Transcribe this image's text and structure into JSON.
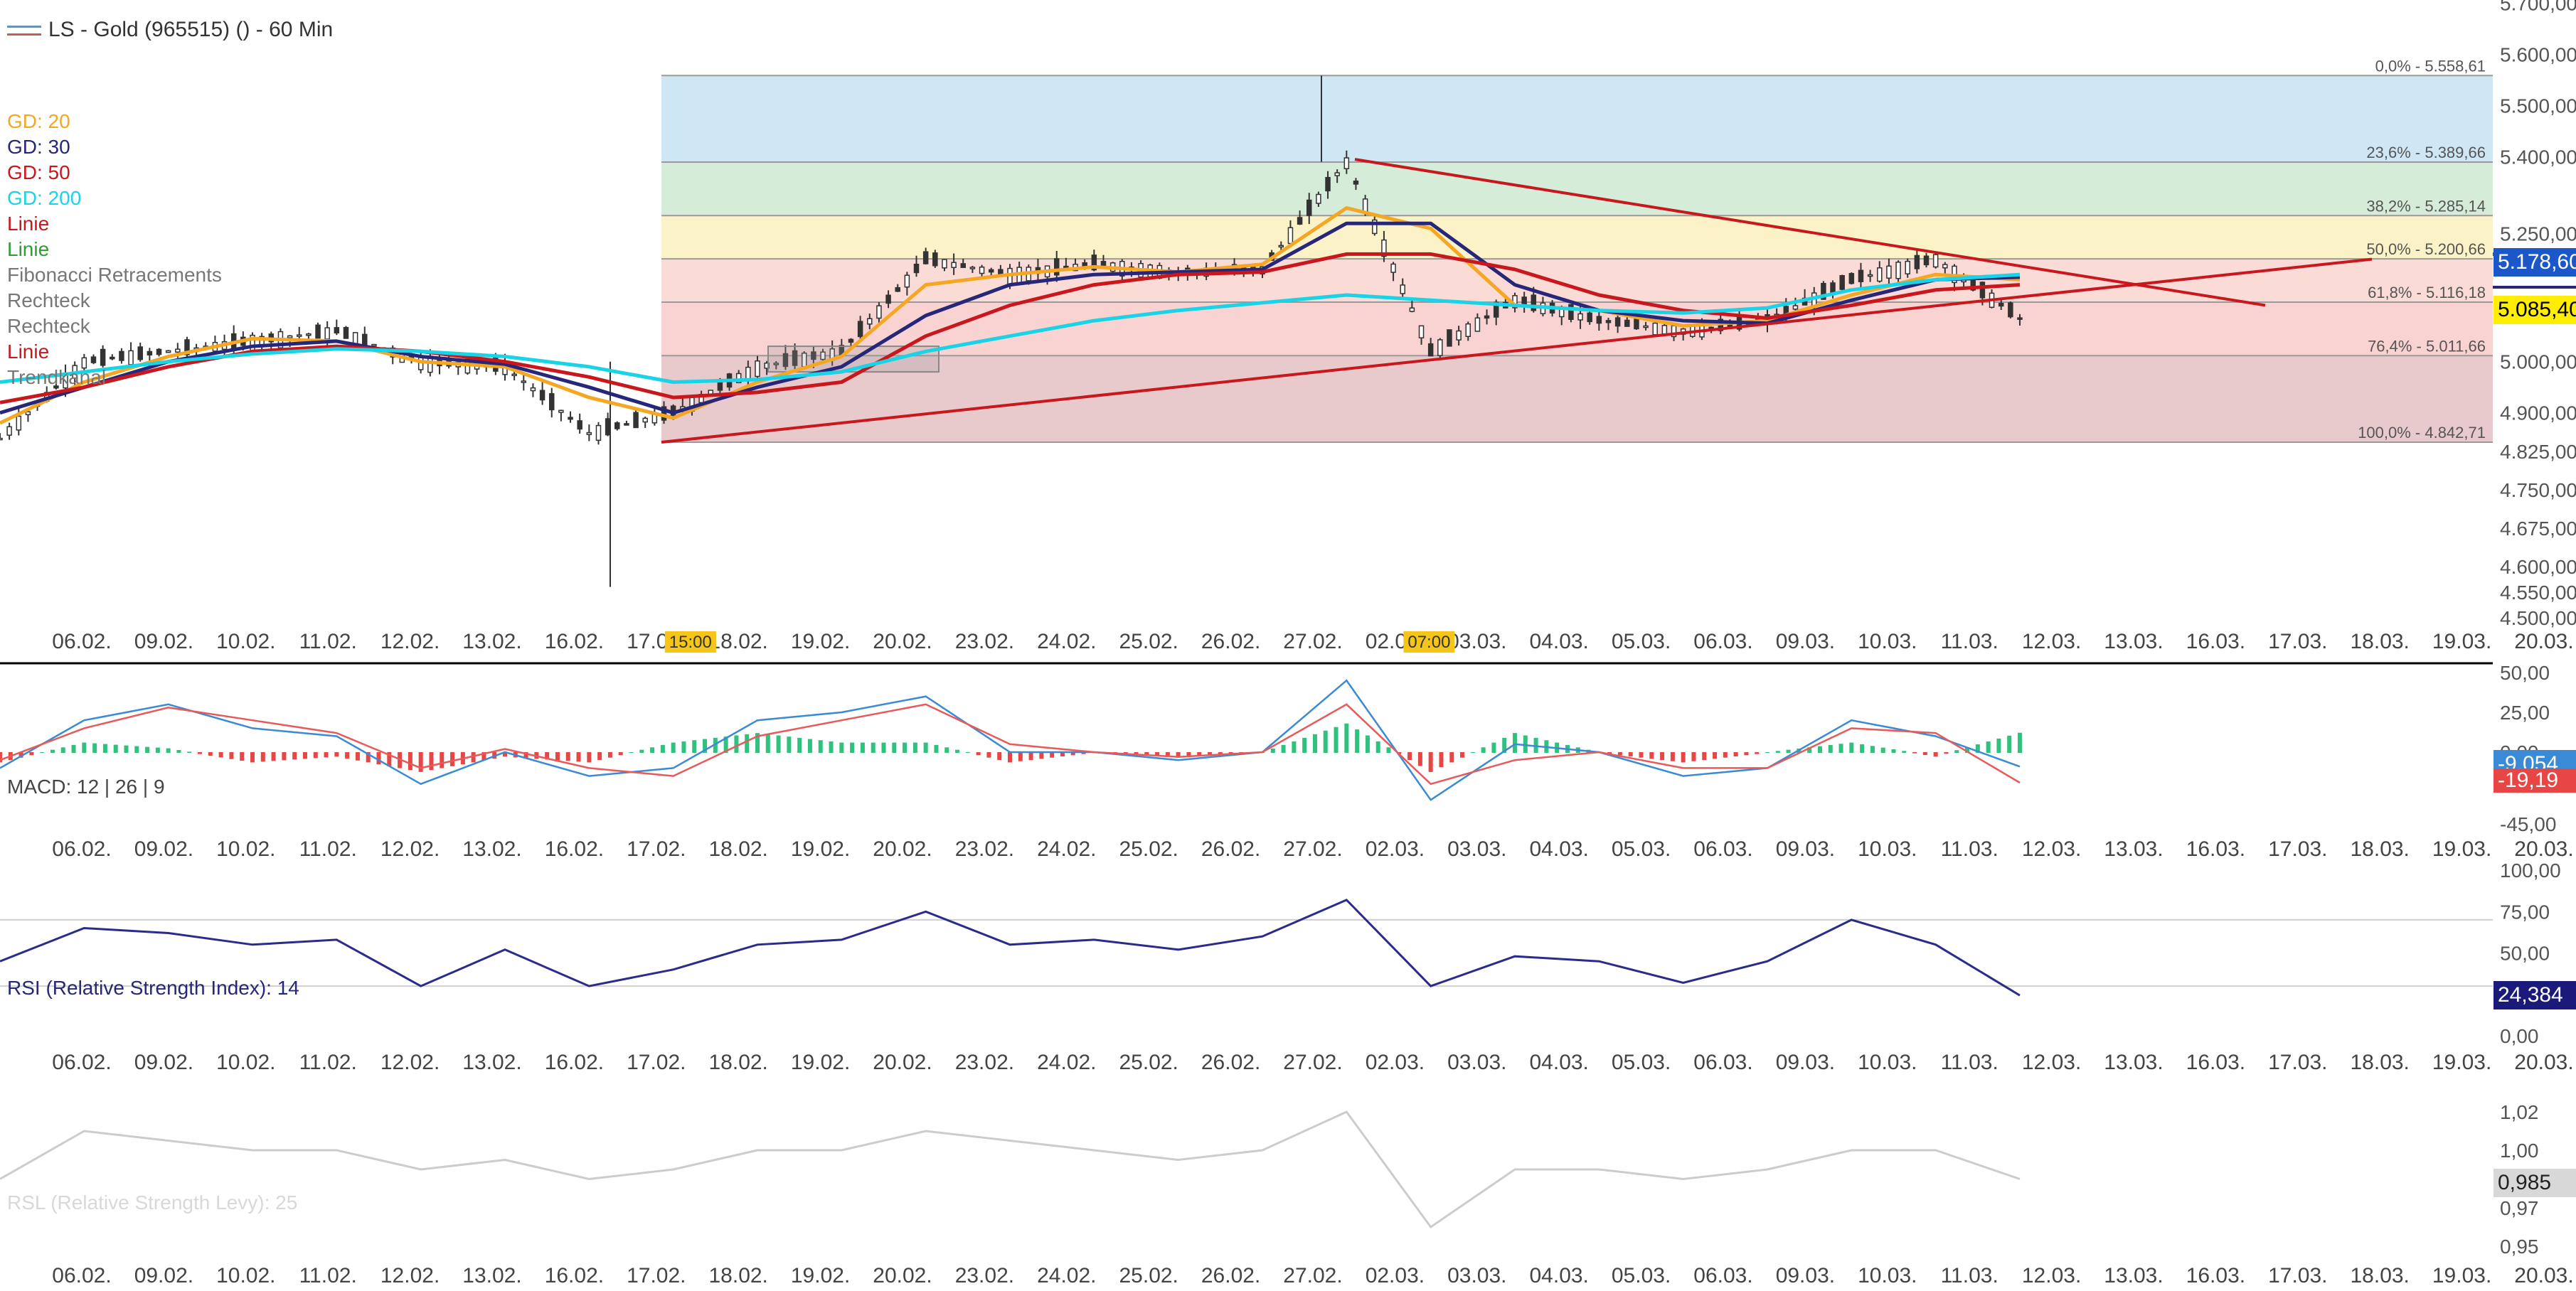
{
  "window": {
    "title": "LS - Gold (965515) () - 60 Min"
  },
  "legend": [
    {
      "label": "GD: 20",
      "color": "#f5a623"
    },
    {
      "label": "GD: 30",
      "color": "#27277a"
    },
    {
      "label": "GD: 50",
      "color": "#c8171d"
    },
    {
      "label": "GD: 200",
      "color": "#19d4e6"
    },
    {
      "label": "Linie",
      "color": "#c8171d"
    },
    {
      "label": "Linie",
      "color": "#2e9e2e"
    },
    {
      "label": "Fibonacci Retracements",
      "color": "#777777"
    },
    {
      "label": "Rechteck",
      "color": "#777777"
    },
    {
      "label": "Rechteck",
      "color": "#777777"
    },
    {
      "label": "Linie",
      "color": "#c8171d"
    },
    {
      "label": "Trendkanal",
      "color": "#777777"
    }
  ],
  "price_panel": {
    "y_ticks": [
      "5.700,00",
      "5.600,00",
      "5.500,00",
      "5.400,00",
      "5.250,00",
      "5.000,00",
      "4.900,00",
      "4.825,00",
      "4.750,00",
      "4.675,00",
      "4.600,00",
      "4.550,00",
      "4.500,00"
    ],
    "last_price_label": "5.178,60",
    "cursor_price_label": "5.085,40"
  },
  "fibonacci": [
    {
      "label": "0,0% - 5.558,61",
      "value": 5558.61
    },
    {
      "label": "23,6% - 5.389,66",
      "value": 5389.66
    },
    {
      "label": "38,2% - 5.285,14",
      "value": 5285.14
    },
    {
      "label": "50,0% - 5.200,66",
      "value": 5200.66
    },
    {
      "label": "61,8% - 5.116,18",
      "value": 5116.18
    },
    {
      "label": "76,4% - 5.011,66",
      "value": 5011.66
    },
    {
      "label": "100,0% - 4.842,71",
      "value": 4842.71
    }
  ],
  "x_dates": [
    "06.02.",
    "09.02.",
    "10.02.",
    "11.02.",
    "12.02.",
    "13.02.",
    "16.02.",
    "17.02.",
    "18.02.",
    "19.02.",
    "20.02.",
    "23.02.",
    "24.02.",
    "25.02.",
    "26.02.",
    "27.02.",
    "02.03.",
    "03.03.",
    "04.03.",
    "05.03.",
    "06.03.",
    "09.03.",
    "10.03.",
    "11.03.",
    "12.03.",
    "13.03.",
    "16.03.",
    "17.03.",
    "18.03.",
    "19.03.",
    "20.03."
  ],
  "time_markers": [
    {
      "label": "15:00",
      "date_index": 7
    },
    {
      "label": "07:00",
      "date_index": 16
    }
  ],
  "macd": {
    "label": "MACD: 12 | 26 | 9",
    "y_ticks": [
      "50,00",
      "25,00",
      "0,00",
      "-45,00"
    ],
    "value_label": "-9,054",
    "signal_label": "-19,19"
  },
  "rsi": {
    "label": "RSI (Relative Strength Index): 14",
    "y_ticks": [
      "100,00",
      "75,00",
      "50,00",
      "0,00"
    ],
    "value_label": "24,384"
  },
  "rsl": {
    "label": "RSL (Relative Strength Levy): 25",
    "y_ticks": [
      "1,02",
      "1,00",
      "0,97",
      "0,95"
    ],
    "value_label": "0,985"
  },
  "colors": {
    "up_candle": "#333333",
    "down_candle": "#333333",
    "gd20": "#f5a623",
    "gd30": "#27277a",
    "gd50": "#c8171d",
    "gd200": "#19d4e6",
    "macd_pos": "#2ec27e",
    "macd_neg": "#e84545",
    "macd_line": "#3a8ad6",
    "signal_line": "#e85a5a",
    "rsi_line": "#2b2b8c",
    "rsl_line": "#cccccc"
  },
  "chart_data": [
    {
      "type": "candlestick",
      "title": "LS - Gold (965515) () - 60 Min",
      "x": [
        "06.02.",
        "09.02.",
        "10.02.",
        "11.02.",
        "12.02.",
        "13.02.",
        "16.02.",
        "17.02.",
        "18.02.",
        "19.02.",
        "20.02.",
        "23.02.",
        "24.02.",
        "25.02.",
        "26.02.",
        "27.02.",
        "02.03.",
        "03.03.",
        "04.03.",
        "05.03.",
        "06.03.",
        "09.03.",
        "10.03.",
        "11.03.",
        "12.03."
      ],
      "close": [
        4850,
        5000,
        5020,
        5040,
        5060,
        5000,
        4990,
        4860,
        4900,
        4990,
        5020,
        5200,
        5170,
        5190,
        5175,
        5180,
        5390,
        5020,
        5120,
        5080,
        5060,
        5080,
        5160,
        5200,
        5085
      ],
      "ylim": [
        4500,
        5700
      ],
      "series": [
        {
          "name": "GD: 20",
          "values": [
            4880,
            4960,
            5010,
            5045,
            5040,
            5000,
            4990,
            4930,
            4890,
            4960,
            5010,
            5150,
            5170,
            5185,
            5175,
            5190,
            5300,
            5260,
            5110,
            5100,
            5070,
            5080,
            5130,
            5170,
            5160
          ]
        },
        {
          "name": "GD: 30",
          "values": [
            4900,
            4950,
            5000,
            5030,
            5040,
            5010,
            4995,
            4950,
            4900,
            4950,
            4990,
            5090,
            5150,
            5170,
            5175,
            5180,
            5270,
            5270,
            5150,
            5100,
            5080,
            5075,
            5120,
            5160,
            5165
          ]
        },
        {
          "name": "GD: 50",
          "values": [
            4920,
            4950,
            4990,
            5020,
            5030,
            5020,
            5000,
            4970,
            4930,
            4940,
            4960,
            5050,
            5110,
            5150,
            5170,
            5175,
            5210,
            5210,
            5180,
            5130,
            5100,
            5085,
            5110,
            5140,
            5150
          ]
        },
        {
          "name": "GD: 200",
          "values": [
            4960,
            4980,
            5000,
            5015,
            5025,
            5020,
            5010,
            4990,
            4960,
            4965,
            4980,
            5020,
            5050,
            5080,
            5100,
            5115,
            5130,
            5120,
            5110,
            5100,
            5095,
            5105,
            5140,
            5160,
            5170
          ]
        }
      ]
    },
    {
      "type": "bar",
      "title": "MACD: 12 | 26 | 9",
      "categories": [
        "06.02.",
        "09.02.",
        "10.02.",
        "11.02.",
        "12.02.",
        "13.02.",
        "16.02.",
        "17.02.",
        "18.02.",
        "19.02.",
        "20.02.",
        "23.02.",
        "24.02.",
        "25.02.",
        "26.02.",
        "27.02.",
        "02.03.",
        "03.03.",
        "04.03.",
        "05.03.",
        "06.03.",
        "09.03.",
        "10.03.",
        "11.03.",
        "12.03."
      ],
      "ylim": [
        -50,
        50
      ],
      "series": [
        {
          "name": "MACD",
          "values": [
            -10,
            20,
            30,
            15,
            10,
            -20,
            0,
            -15,
            -10,
            20,
            25,
            35,
            0,
            0,
            -5,
            0,
            45,
            -30,
            5,
            0,
            -15,
            -10,
            20,
            10,
            -9.054
          ]
        },
        {
          "name": "Signal",
          "values": [
            -5,
            15,
            28,
            20,
            12,
            -10,
            2,
            -10,
            -15,
            10,
            20,
            30,
            5,
            0,
            -3,
            0,
            30,
            -20,
            -5,
            0,
            -10,
            -10,
            15,
            12,
            -19.19
          ]
        }
      ]
    },
    {
      "type": "line",
      "title": "RSI (Relative Strength Index): 14",
      "x": [
        "06.02.",
        "09.02.",
        "10.02.",
        "11.02.",
        "12.02.",
        "13.02.",
        "16.02.",
        "17.02.",
        "18.02.",
        "19.02.",
        "20.02.",
        "23.02.",
        "24.02.",
        "25.02.",
        "26.02.",
        "27.02.",
        "02.03.",
        "03.03.",
        "04.03.",
        "05.03.",
        "06.03.",
        "09.03.",
        "10.03.",
        "11.03.",
        "12.03."
      ],
      "ylim": [
        0,
        100
      ],
      "series": [
        {
          "name": "RSI",
          "values": [
            45,
            65,
            62,
            55,
            58,
            30,
            52,
            30,
            40,
            55,
            58,
            75,
            55,
            58,
            52,
            60,
            82,
            30,
            48,
            45,
            32,
            45,
            70,
            55,
            24.384
          ]
        }
      ]
    },
    {
      "type": "line",
      "title": "RSL (Relative Strength Levy): 25",
      "x": [
        "06.02.",
        "09.02.",
        "10.02.",
        "11.02.",
        "12.02.",
        "13.02.",
        "16.02.",
        "17.02.",
        "18.02.",
        "19.02.",
        "20.02.",
        "23.02.",
        "24.02.",
        "25.02.",
        "26.02.",
        "27.02.",
        "02.03.",
        "03.03.",
        "04.03.",
        "05.03.",
        "06.03.",
        "09.03.",
        "10.03.",
        "11.03.",
        "12.03."
      ],
      "ylim": [
        0.95,
        1.03
      ],
      "series": [
        {
          "name": "RSL",
          "values": [
            0.985,
            1.01,
            1.005,
            1.0,
            1.0,
            0.99,
            0.995,
            0.985,
            0.99,
            1.0,
            1.0,
            1.01,
            1.005,
            1.0,
            0.995,
            1.0,
            1.02,
            0.96,
            0.99,
            0.99,
            0.985,
            0.99,
            1.0,
            1.0,
            0.985
          ]
        }
      ]
    }
  ]
}
